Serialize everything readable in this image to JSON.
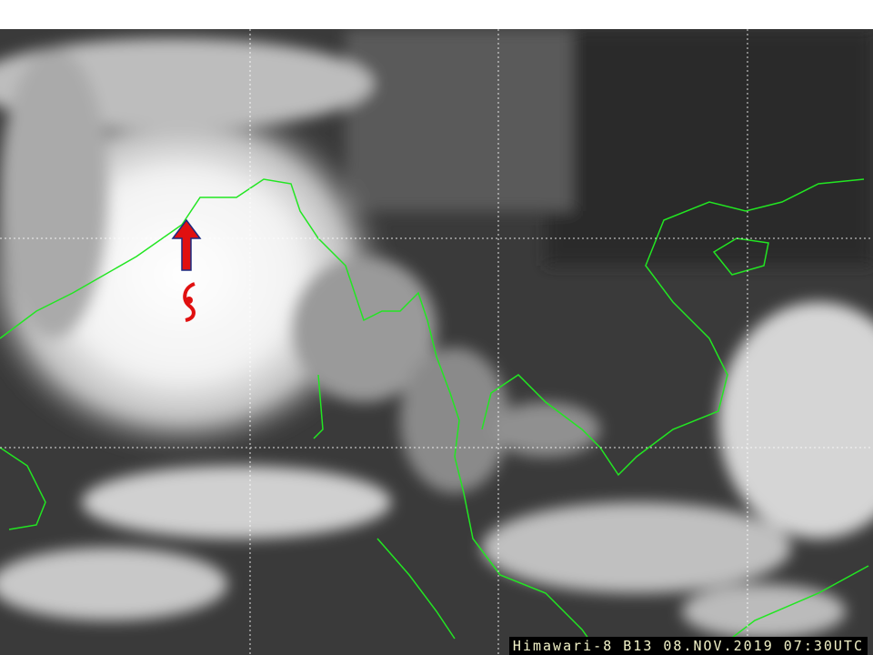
{
  "image": {
    "caption": "Himawari-8 B13 08.NOV.2019 07:30UTC",
    "coastline_color": "#22e622",
    "grid_color": "#ffffff",
    "marker": {
      "arrow_icon": "red-up-arrow-icon",
      "arrow_color": "#e01010",
      "cyclone_icon": "cyclone-symbol-icon",
      "cyclone_color": "#e01010"
    }
  }
}
